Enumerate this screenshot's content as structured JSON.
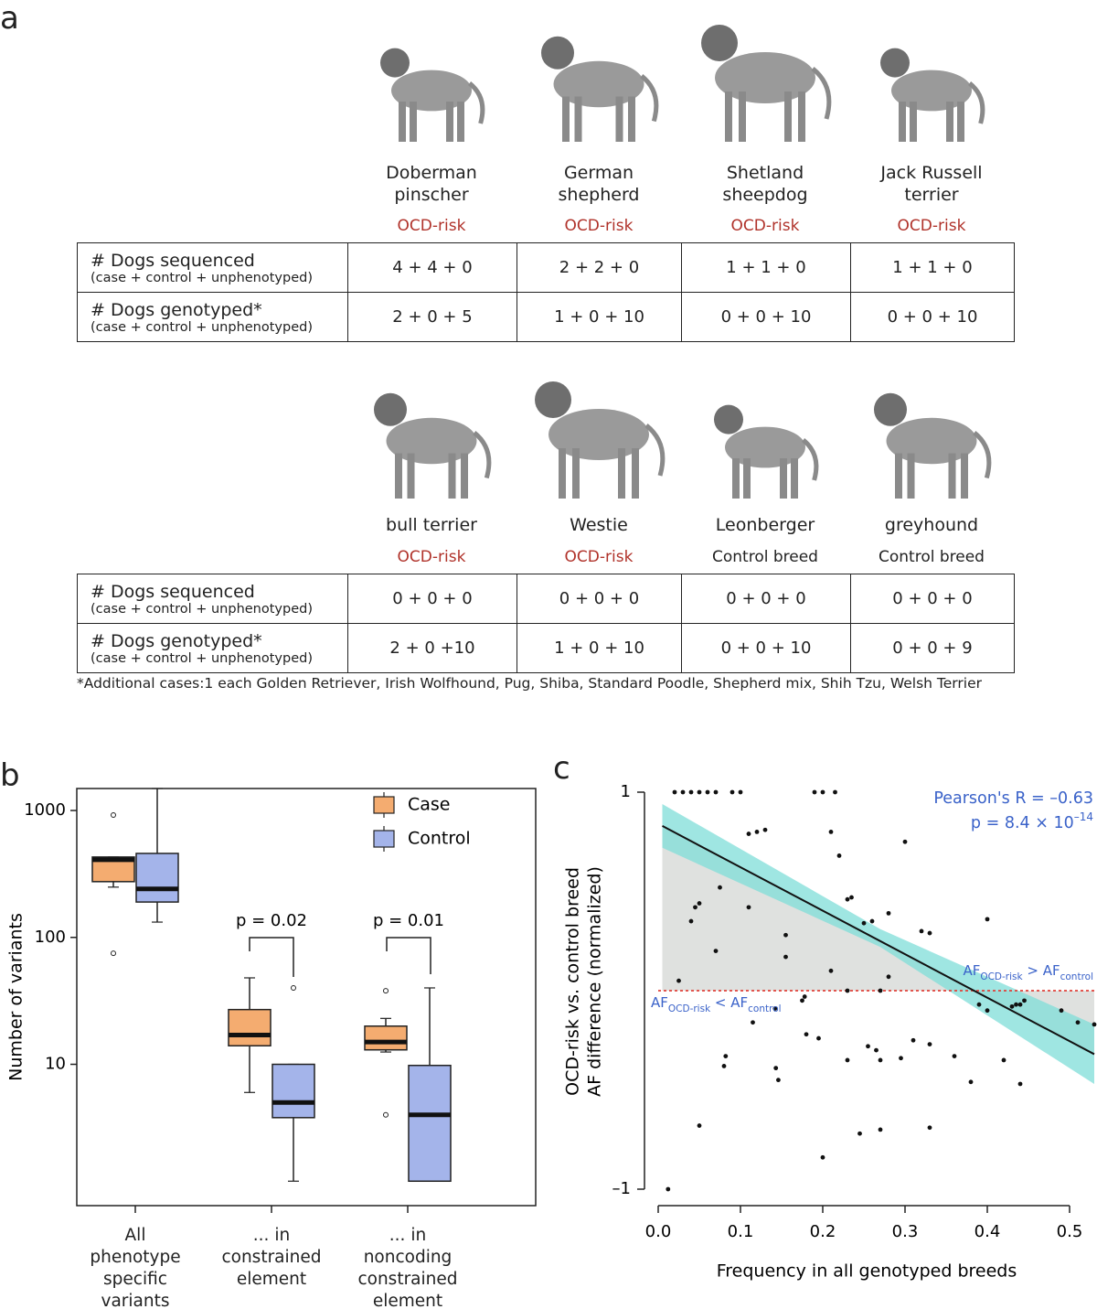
{
  "panel_labels": [
    "a",
    "b",
    "c"
  ],
  "table_top": {
    "breeds": [
      {
        "name": "Doberman pinscher",
        "status": "OCD-risk",
        "status_color": "#b0322a"
      },
      {
        "name": "German shepherd",
        "status": "OCD-risk",
        "status_color": "#b0322a"
      },
      {
        "name": "Shetland sheepdog",
        "status": "OCD-risk",
        "status_color": "#b0322a"
      },
      {
        "name": "Jack Russell terrier",
        "status": "OCD-risk",
        "status_color": "#b0322a"
      }
    ],
    "rows": [
      {
        "label": "# Dogs sequenced",
        "sublabel": "(case + control + unphenotyped)",
        "cells": [
          "4 + 4 + 0",
          "2 + 2 + 0",
          "1 + 1 + 0",
          "1 + 1 + 0"
        ]
      },
      {
        "label": "# Dogs genotyped*",
        "sublabel": "(case + control + unphenotyped)",
        "cells": [
          "2 + 0 + 5",
          "1 + 0 + 10",
          "0 + 0 + 10",
          "0 + 0 + 10"
        ]
      }
    ]
  },
  "table_bottom": {
    "breeds": [
      {
        "name": "bull terrier",
        "status": "OCD-risk",
        "status_color": "#b0322a"
      },
      {
        "name": "Westie",
        "status": "OCD-risk",
        "status_color": "#b0322a"
      },
      {
        "name": "Leonberger",
        "status": "Control breed",
        "status_color": "#222222"
      },
      {
        "name": "greyhound",
        "status": "Control breed",
        "status_color": "#222222"
      }
    ],
    "rows": [
      {
        "label": "# Dogs sequenced",
        "sublabel": "(case + control + unphenotyped)",
        "cells": [
          "0 + 0 + 0",
          "0 + 0 + 0",
          "0 + 0 + 0",
          "0 + 0 + 0"
        ]
      },
      {
        "label": "# Dogs genotyped*",
        "sublabel": "(case + control + unphenotyped)",
        "cells": [
          "2 + 0 +10",
          "1 + 0 + 10",
          "0 + 0 + 10",
          "0 + 0 + 9"
        ]
      }
    ]
  },
  "footnote": "*Additional cases:1 each Golden Retriever, Irish Wolfhound, Pug, Shiba, Standard Poodle, Shepherd mix, Shih Tzu, Welsh Terrier",
  "chart_data": [
    {
      "type": "box",
      "y_label": "Number of variants",
      "log_y": true,
      "ylim": [
        0.77,
        1490
      ],
      "yticks": [
        10,
        100,
        1000
      ],
      "categories": [
        "All phenotype specific variants",
        "... in constrained element",
        "... in noncoding constrained element"
      ],
      "series": [
        {
          "name": "Case",
          "color": "#f4ac70",
          "whisker_low": [
            249,
            6,
            12.5
          ],
          "q1": [
            275,
            14,
            13
          ],
          "median": [
            409,
            17,
            15
          ],
          "q3": [
            430,
            27,
            20
          ],
          "whisker_high": [
            430,
            48,
            23
          ],
          "outliers": [
            [
              920,
              75
            ],
            [],
            [
              38,
              4
            ]
          ]
        },
        {
          "name": "Control",
          "color": "#a4b4ea",
          "whisker_low": [
            132,
            1.2,
            1.2
          ],
          "q1": [
            190,
            3.8,
            1.2
          ],
          "median": [
            241,
            5,
            4
          ],
          "q3": [
            459,
            10,
            9.8
          ],
          "whisker_high": [
            1490,
            10,
            40
          ],
          "outliers": [
            [],
            [
              40
            ],
            []
          ]
        }
      ],
      "comparisons": [
        {
          "category": 1,
          "text": "p = 0.02"
        },
        {
          "category": 2,
          "text": "p = 0.01"
        }
      ]
    },
    {
      "type": "scatter",
      "x_label": "Frequency in all genotyped breeds",
      "y_label": [
        "OCD-risk vs. control breed",
        "AF difference (normalized)"
      ],
      "xlim": [
        0,
        0.53
      ],
      "ylim": [
        -1,
        1
      ],
      "xticks": [
        {
          "value": 0,
          "label": "0.0"
        },
        0.1,
        0.2,
        0.3,
        0.4,
        0.5
      ],
      "yticks": [
        {
          "value": -1,
          "label": "–1"
        },
        1
      ],
      "color": "#111111",
      "x": [
        0.02,
        0.03,
        0.04,
        0.05,
        0.06,
        0.07,
        0.09,
        0.1,
        0.2,
        0.19,
        0.215,
        0.21,
        0.3,
        0.11,
        0.12,
        0.13,
        0.22,
        0.23,
        0.235,
        0.05,
        0.045,
        0.04,
        0.075,
        0.11,
        0.28,
        0.25,
        0.26,
        0.155,
        0.32,
        0.33,
        0.4,
        0.07,
        0.155,
        0.21,
        0.28,
        0.025,
        0.23,
        0.27,
        0.178,
        0.175,
        0.39,
        0.43,
        0.435,
        0.44,
        0.445,
        0.49,
        0.51,
        0.53,
        0.4,
        0.142,
        0.115,
        0.18,
        0.195,
        0.23,
        0.255,
        0.265,
        0.27,
        0.31,
        0.295,
        0.33,
        0.36,
        0.42,
        0.08,
        0.082,
        0.143,
        0.146,
        0.38,
        0.44,
        0.05,
        0.245,
        0.27,
        0.33,
        0.2,
        0.012
      ],
      "y": [
        1,
        1,
        1,
        1,
        1,
        1,
        1,
        1,
        1,
        1,
        1,
        0.8,
        0.75,
        0.79,
        0.8,
        0.81,
        0.68,
        0.46,
        0.47,
        0.44,
        0.42,
        0.35,
        0.52,
        0.42,
        0.39,
        0.34,
        0.35,
        0.28,
        0.3,
        0.29,
        0.36,
        0.2,
        0.17,
        0.1,
        0.07,
        0.05,
        0.0,
        0.0,
        -0.03,
        -0.05,
        -0.07,
        -0.08,
        -0.07,
        -0.07,
        -0.05,
        -0.1,
        -0.16,
        -0.17,
        -0.1,
        -0.09,
        -0.16,
        -0.22,
        -0.24,
        -0.35,
        -0.28,
        -0.3,
        -0.35,
        -0.25,
        -0.34,
        -0.27,
        -0.33,
        -0.35,
        -0.38,
        -0.33,
        -0.39,
        -0.45,
        -0.46,
        -0.47,
        -0.68,
        -0.72,
        -0.7,
        -0.69,
        -0.84,
        -1.0
      ],
      "fit": {
        "color": "#111111",
        "x": [
          0.005,
          0.53
        ],
        "y": [
          0.83,
          -0.32
        ]
      },
      "band": {
        "color": "#7fded8",
        "x": [
          0.005,
          0.27,
          0.53
        ],
        "lower": [
          0.72,
          0.22,
          -0.47
        ],
        "upper": [
          0.94,
          0.31,
          -0.17
        ]
      },
      "reference_y": 0,
      "reference_color": "#e0413a",
      "stats": [
        {
          "text": "Pearson's R = –0.63"
        },
        {
          "text": "p = 8.4 × 10",
          "superscript": "–14"
        }
      ],
      "region_labels": [
        {
          "parts": [
            "AF",
            "OCD-risk",
            " > AF",
            "control"
          ]
        },
        {
          "parts": [
            "AF",
            "OCD-risk",
            " < AF",
            "control"
          ]
        }
      ],
      "annotation_color": "#3a62c9"
    }
  ]
}
